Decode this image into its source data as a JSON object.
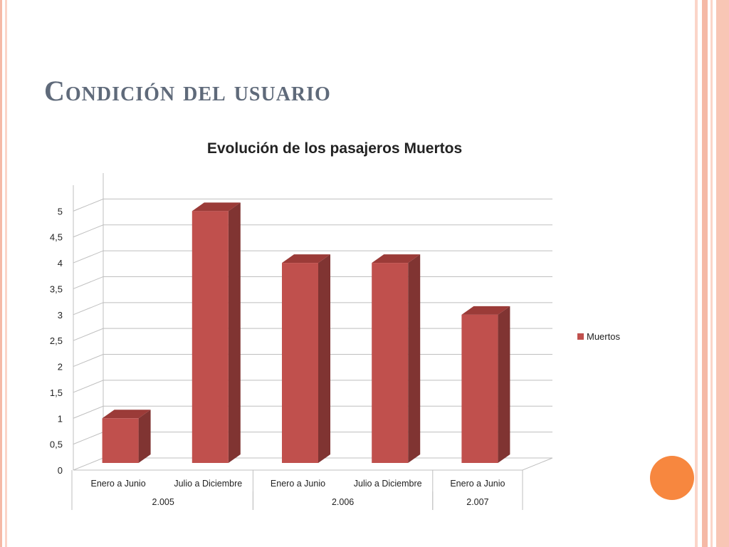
{
  "slide": {
    "title": "Condición del usuario"
  },
  "colors": {
    "bar_front": "#c0504d",
    "bar_side": "#803432",
    "bar_top": "#9b3b38",
    "accent_circle": "#f7873f",
    "stripe_light": "#fbd5c8",
    "stripe_mid": "#f5b9a6"
  },
  "chart_data": {
    "type": "bar",
    "title": "Evolución de los pasajeros Muertos",
    "categories": [
      "Enero a Junio",
      "Julio a Diciembre",
      "Enero a Junio",
      "Julio a Diciembre",
      "Enero a Junio"
    ],
    "groups": [
      {
        "label": "2.005",
        "count": 2
      },
      {
        "label": "2.006",
        "count": 2
      },
      {
        "label": "2.007",
        "count": 1
      }
    ],
    "series": [
      {
        "name": "Muertos",
        "values": [
          1,
          5,
          4,
          4,
          3
        ]
      }
    ],
    "ylim": [
      0,
      5.5
    ],
    "yticks": [
      "0",
      "0,5",
      "1",
      "1,5",
      "2",
      "2,5",
      "3",
      "3,5",
      "4",
      "4,5",
      "5"
    ],
    "grid": true,
    "legend": "right"
  }
}
